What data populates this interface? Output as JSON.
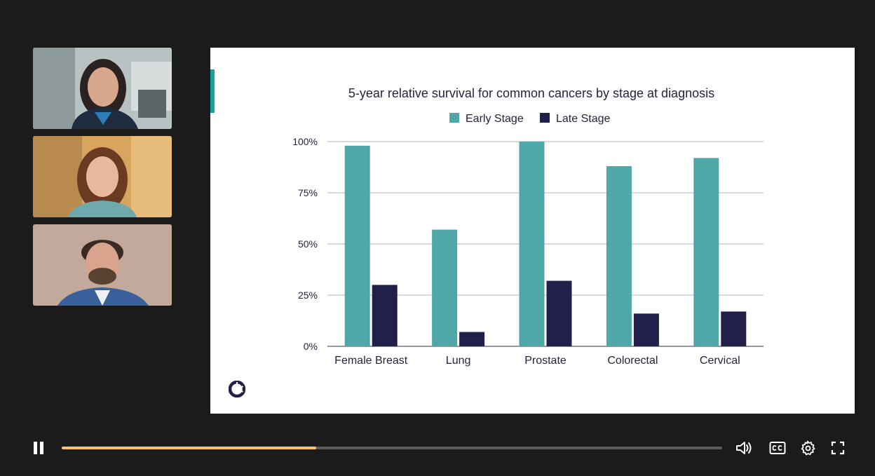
{
  "participants": [
    {
      "name": "participant-1"
    },
    {
      "name": "participant-2"
    },
    {
      "name": "participant-3"
    }
  ],
  "chart_data": {
    "type": "bar",
    "title": "5-year relative survival for common cancers by stage at diagnosis",
    "categories": [
      "Female Breast",
      "Lung",
      "Prostate",
      "Colorectal",
      "Cervical"
    ],
    "series": [
      {
        "name": "Early Stage",
        "color": "#4fa7a7",
        "values": [
          98,
          57,
          100,
          88,
          92
        ]
      },
      {
        "name": "Late Stage",
        "color": "#221f4b",
        "values": [
          30,
          7,
          32,
          16,
          17
        ]
      }
    ],
    "ylim": [
      0,
      100
    ],
    "yticks": [
      "0%",
      "25%",
      "50%",
      "75%",
      "100%"
    ],
    "xlabel": "",
    "ylabel": "",
    "grid": true,
    "legend": "top"
  },
  "player": {
    "progress": 0.385,
    "accent_color": "#f6c26a"
  }
}
